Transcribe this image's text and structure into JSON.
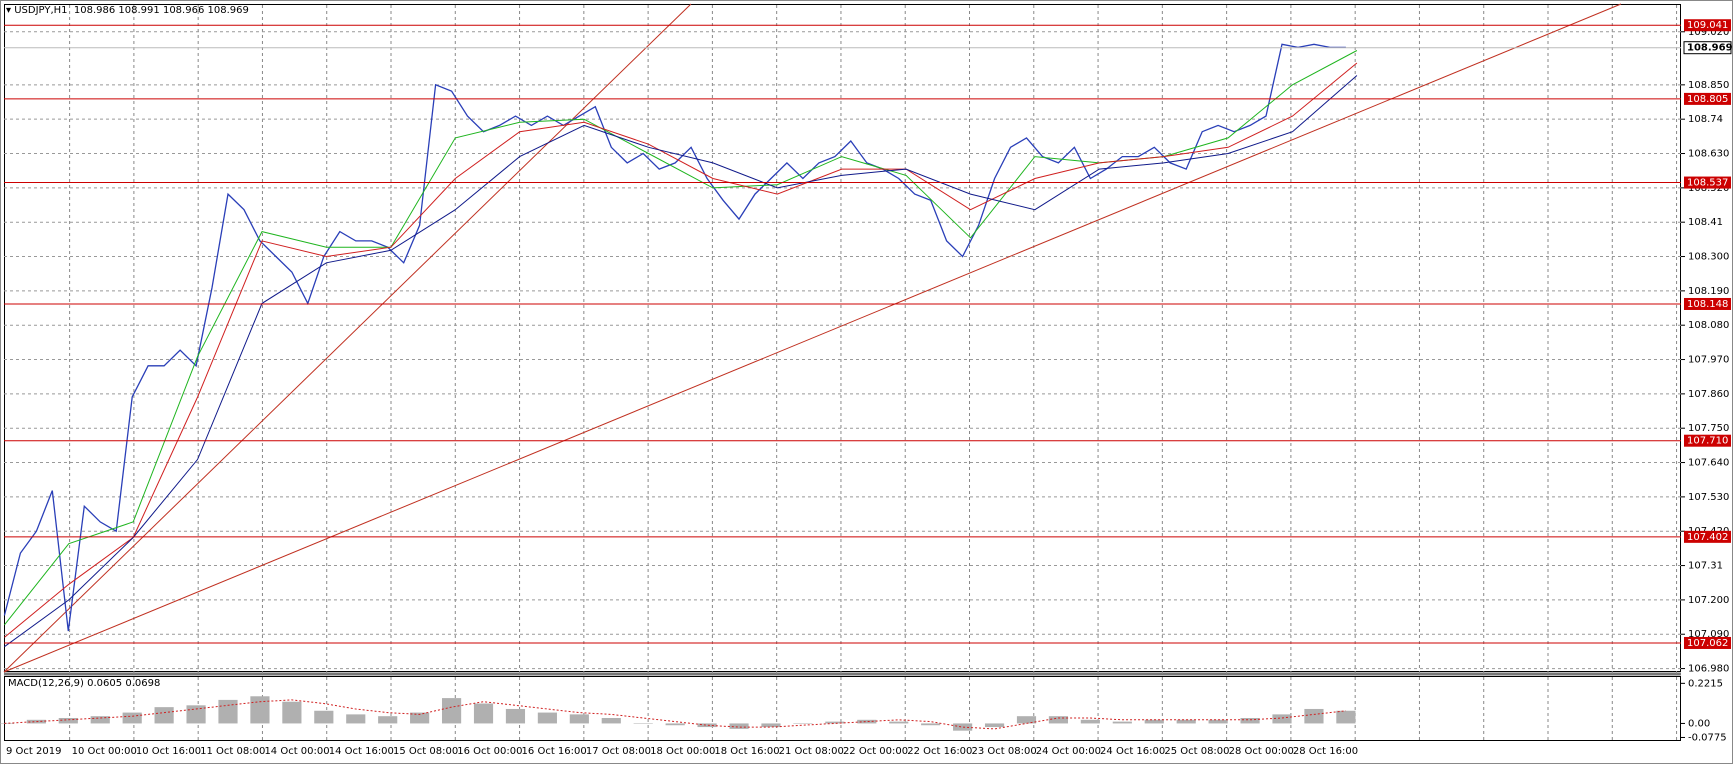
{
  "chart_data": [
    {
      "type": "line",
      "symbol": "USDJPY,H1",
      "open": 108.986,
      "high": 108.991,
      "low": 108.966,
      "close": 108.969,
      "ylim": [
        106.969,
        109.109
      ],
      "yticks": [
        {
          "value": 109.02,
          "label": "109.020"
        },
        {
          "value": 108.85,
          "label": "108.850"
        },
        108.74,
        {
          "value": 108.63,
          "label": "108.630"
        },
        {
          "value": 108.52,
          "label": "108.520"
        },
        108.41,
        {
          "value": 108.3,
          "label": "108.300"
        },
        {
          "value": 108.19,
          "label": "108.190"
        },
        {
          "value": 108.08,
          "label": "108.080"
        },
        {
          "value": 107.97,
          "label": "107.970"
        },
        {
          "value": 107.86,
          "label": "107.860"
        },
        {
          "value": 107.75,
          "label": "107.750"
        },
        {
          "value": 107.64,
          "label": "107.640"
        },
        {
          "value": 107.53,
          "label": "107.530"
        },
        {
          "value": 107.42,
          "label": "107.420"
        },
        107.31,
        {
          "value": 107.2,
          "label": "107.200"
        },
        {
          "value": 107.09,
          "label": "107.090"
        },
        {
          "value": 106.98,
          "label": "106.980"
        }
      ],
      "grid": true,
      "hlines": [
        109.041,
        108.805,
        108.537,
        108.148,
        {
          "value": 107.71,
          "label": "107.710"
        },
        107.402,
        107.062
      ],
      "hline_color": "#cc0000",
      "last": 108.969,
      "time_labels": [
        "9 Oct 2019",
        "10 Oct 00:00",
        "10 Oct 16:00",
        "11 Oct 08:00",
        "14 Oct 00:00",
        "14 Oct 16:00",
        "15 Oct 08:00",
        "16 Oct 00:00",
        "16 Oct 16:00",
        "17 Oct 08:00",
        "18 Oct 00:00",
        "18 Oct 16:00",
        "21 Oct 08:00",
        "22 Oct 00:00",
        "22 Oct 16:00",
        "23 Oct 08:00",
        "24 Oct 00:00",
        "24 Oct 16:00",
        "25 Oct 08:00",
        "28 Oct 00:00",
        "28 Oct 16:00"
      ],
      "series": [
        {
          "color": "#2a3fb8",
          "values": [
            107.15,
            107.35,
            107.42,
            107.55,
            107.1,
            107.5,
            107.45,
            107.42,
            107.85,
            107.95,
            107.95,
            108.0,
            107.95,
            108.2,
            108.5,
            108.45,
            108.35,
            108.3,
            108.25,
            108.15,
            108.3,
            108.38,
            108.35,
            108.35,
            108.33,
            108.28,
            108.4,
            108.85,
            108.83,
            108.75,
            108.7,
            108.72,
            108.75,
            108.72,
            108.75,
            108.72,
            108.75,
            108.78,
            108.65,
            108.6,
            108.63,
            108.58,
            108.6,
            108.65,
            108.55,
            108.48,
            108.42,
            108.5,
            108.55,
            108.6,
            108.55,
            108.6,
            108.62,
            108.67,
            108.6,
            108.58,
            108.55,
            108.5,
            108.48,
            108.35,
            108.3,
            108.4,
            108.55,
            108.65,
            108.68,
            108.62,
            108.6,
            108.65,
            108.55,
            108.58,
            108.62,
            108.62,
            108.65,
            108.6,
            108.58,
            108.7,
            108.72,
            108.7,
            108.72,
            108.75,
            108.98,
            108.97,
            108.98,
            108.97,
            108.97
          ]
        },
        {
          "color": "#1fb51f",
          "values": [
            107.12,
            107.38,
            107.45,
            107.98,
            108.38,
            108.33,
            108.33,
            108.68,
            108.73,
            108.74,
            108.63,
            108.52,
            108.53,
            108.62,
            108.56,
            108.36,
            108.62,
            108.6,
            108.62,
            108.68,
            108.85,
            108.96
          ]
        },
        {
          "color": "#d02020",
          "values": [
            107.08,
            107.25,
            107.4,
            107.85,
            108.35,
            108.3,
            108.33,
            108.55,
            108.7,
            108.73,
            108.66,
            108.55,
            108.5,
            108.58,
            108.58,
            108.45,
            108.55,
            108.6,
            108.62,
            108.65,
            108.75,
            108.92
          ]
        },
        {
          "color": "#101a8a",
          "values": [
            107.05,
            107.2,
            107.4,
            107.65,
            108.15,
            108.28,
            108.32,
            108.45,
            108.62,
            108.72,
            108.65,
            108.6,
            108.52,
            108.56,
            108.58,
            108.5,
            108.45,
            108.58,
            108.6,
            108.63,
            108.7,
            108.88
          ]
        }
      ]
    },
    {
      "type": "macd",
      "title": "MACD(12,26,9)",
      "macd": 0.0605,
      "signal": 0.0698,
      "ylim": [
        -0.0915,
        0.2565
      ],
      "yticks": [
        0.2215,
        {
          "value": 0,
          "label": "0.00"
        },
        -0.0775
      ],
      "histogram_color": "#b0b0b0",
      "signal_color": "#d02020",
      "histogram": [
        0.0,
        0.02,
        0.03,
        0.04,
        0.06,
        0.09,
        0.1,
        0.13,
        0.15,
        0.12,
        0.07,
        0.05,
        0.04,
        0.06,
        0.14,
        0.11,
        0.08,
        0.06,
        0.05,
        0.03,
        0.0,
        -0.01,
        -0.02,
        -0.03,
        -0.02,
        0.0,
        0.01,
        0.02,
        0.01,
        -0.01,
        -0.04,
        -0.02,
        0.04,
        0.04,
        0.02,
        0.01,
        0.02,
        0.02,
        0.02,
        0.03,
        0.05,
        0.08,
        0.07
      ],
      "signal_line": [
        0.0,
        0.01,
        0.02,
        0.03,
        0.04,
        0.06,
        0.08,
        0.1,
        0.12,
        0.13,
        0.11,
        0.08,
        0.06,
        0.05,
        0.09,
        0.12,
        0.1,
        0.08,
        0.06,
        0.05,
        0.03,
        0.01,
        -0.01,
        -0.02,
        -0.02,
        -0.01,
        0.0,
        0.01,
        0.02,
        0.01,
        -0.02,
        -0.03,
        0.0,
        0.03,
        0.03,
        0.02,
        0.02,
        0.02,
        0.02,
        0.02,
        0.03,
        0.05,
        0.07
      ]
    }
  ]
}
